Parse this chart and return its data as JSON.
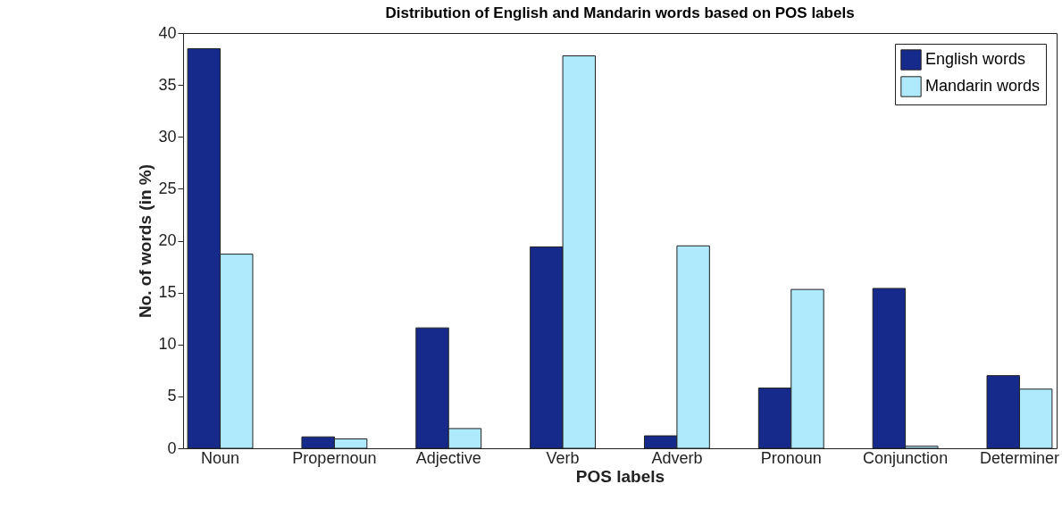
{
  "chart_data": {
    "type": "bar",
    "title": "Distribution of English and Mandarin words based on POS labels",
    "xlabel": "POS labels",
    "ylabel": "No. of words (in %)",
    "categories": [
      "Noun",
      "Propernoun",
      "Adjective",
      "Verb",
      "Adverb",
      "Pronoun",
      "Conjunction",
      "Determiner"
    ],
    "series": [
      {
        "name": "English words",
        "color": "#152a8a",
        "values": [
          38.5,
          1.1,
          11.6,
          19.4,
          1.2,
          5.8,
          15.4,
          7.0
        ]
      },
      {
        "name": "Mandarin words",
        "color": "#aeeafb",
        "values": [
          18.7,
          0.9,
          1.9,
          37.8,
          19.5,
          15.3,
          0.2,
          5.7
        ]
      }
    ],
    "ylim": [
      0,
      40
    ],
    "yticks": [
      0,
      5,
      10,
      15,
      20,
      25,
      30,
      35,
      40
    ],
    "grid": false,
    "legend": "top right"
  }
}
